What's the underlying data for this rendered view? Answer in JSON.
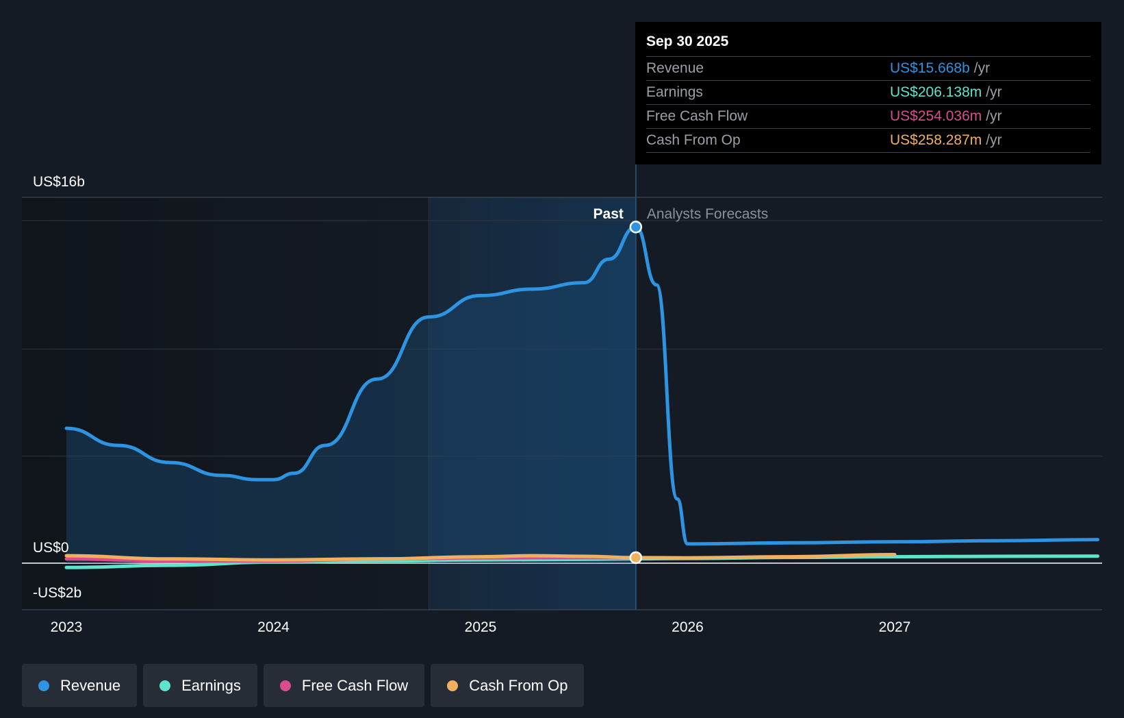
{
  "chart_data": {
    "type": "line",
    "title": "",
    "xlabel": "",
    "ylabel": "",
    "x_ticks": [
      "2023",
      "2024",
      "2025",
      "2026",
      "2027"
    ],
    "y_axis_labels": [
      {
        "value": 16,
        "label": "US$16b"
      },
      {
        "value": 0,
        "label": "US$0"
      },
      {
        "value": -2,
        "label": "-US$2b"
      }
    ],
    "ylim": [
      -2,
      16
    ],
    "xlim": [
      2022.8,
      2027.98
    ],
    "units": "US$ billions",
    "grid": true,
    "past_label": "Past",
    "forecast_label": "Analysts Forecasts",
    "highlight_range": [
      2024.75,
      2025.75
    ],
    "divider_x": 2025.75,
    "series": [
      {
        "name": "Revenue",
        "color": "#2e93e0",
        "x": [
          2023.0,
          2023.25,
          2023.5,
          2023.75,
          2023.92,
          2024.0,
          2024.1,
          2024.25,
          2024.5,
          2024.75,
          2025.0,
          2025.25,
          2025.5,
          2025.62,
          2025.75,
          2025.85,
          2025.95,
          2026.0,
          2026.5,
          2027.0,
          2027.5,
          2027.98
        ],
        "values": [
          6.3,
          5.5,
          4.7,
          4.1,
          3.9,
          3.9,
          4.2,
          5.5,
          8.6,
          11.5,
          12.5,
          12.8,
          13.1,
          14.2,
          15.7,
          13.0,
          3.0,
          0.9,
          0.95,
          1.0,
          1.05,
          1.1
        ]
      },
      {
        "name": "Earnings",
        "color": "#5ee3cc",
        "x": [
          2023.0,
          2023.5,
          2024.0,
          2024.5,
          2025.0,
          2025.5,
          2025.75,
          2026.0,
          2026.5,
          2027.0,
          2027.5,
          2027.98
        ],
        "values": [
          -0.2,
          -0.1,
          0.05,
          0.1,
          0.15,
          0.18,
          0.206,
          0.22,
          0.27,
          0.3,
          0.32,
          0.33
        ]
      },
      {
        "name": "Free Cash Flow",
        "color": "#d94c8f",
        "x": [
          2023.0,
          2023.5,
          2024.0,
          2024.5,
          2025.0,
          2025.5,
          2025.75
        ],
        "values": [
          0.2,
          0.1,
          0.1,
          0.2,
          0.25,
          0.26,
          0.254
        ]
      },
      {
        "name": "Cash From Op",
        "color": "#f0b060",
        "x": [
          2023.0,
          2023.5,
          2024.0,
          2024.5,
          2025.0,
          2025.25,
          2025.5,
          2025.75,
          2026.0,
          2026.5,
          2027.0
        ],
        "values": [
          0.35,
          0.2,
          0.15,
          0.2,
          0.3,
          0.35,
          0.32,
          0.258,
          0.25,
          0.3,
          0.4
        ]
      }
    ]
  },
  "tooltip": {
    "date": "Sep 30 2025",
    "unit": "/yr",
    "rows": [
      {
        "label": "Revenue",
        "value": "US$15.668b",
        "color": "#2e93e0"
      },
      {
        "label": "Earnings",
        "value": "US$206.138m",
        "color": "#5ee3cc"
      },
      {
        "label": "Free Cash Flow",
        "value": "US$254.036m",
        "color": "#d94c8f"
      },
      {
        "label": "Cash From Op",
        "value": "US$258.287m",
        "color": "#f0b060"
      }
    ]
  },
  "legend": [
    {
      "label": "Revenue",
      "color": "#2e93e0"
    },
    {
      "label": "Earnings",
      "color": "#5ee3cc"
    },
    {
      "label": "Free Cash Flow",
      "color": "#d94c8f"
    },
    {
      "label": "Cash From Op",
      "color": "#f0b060"
    }
  ]
}
